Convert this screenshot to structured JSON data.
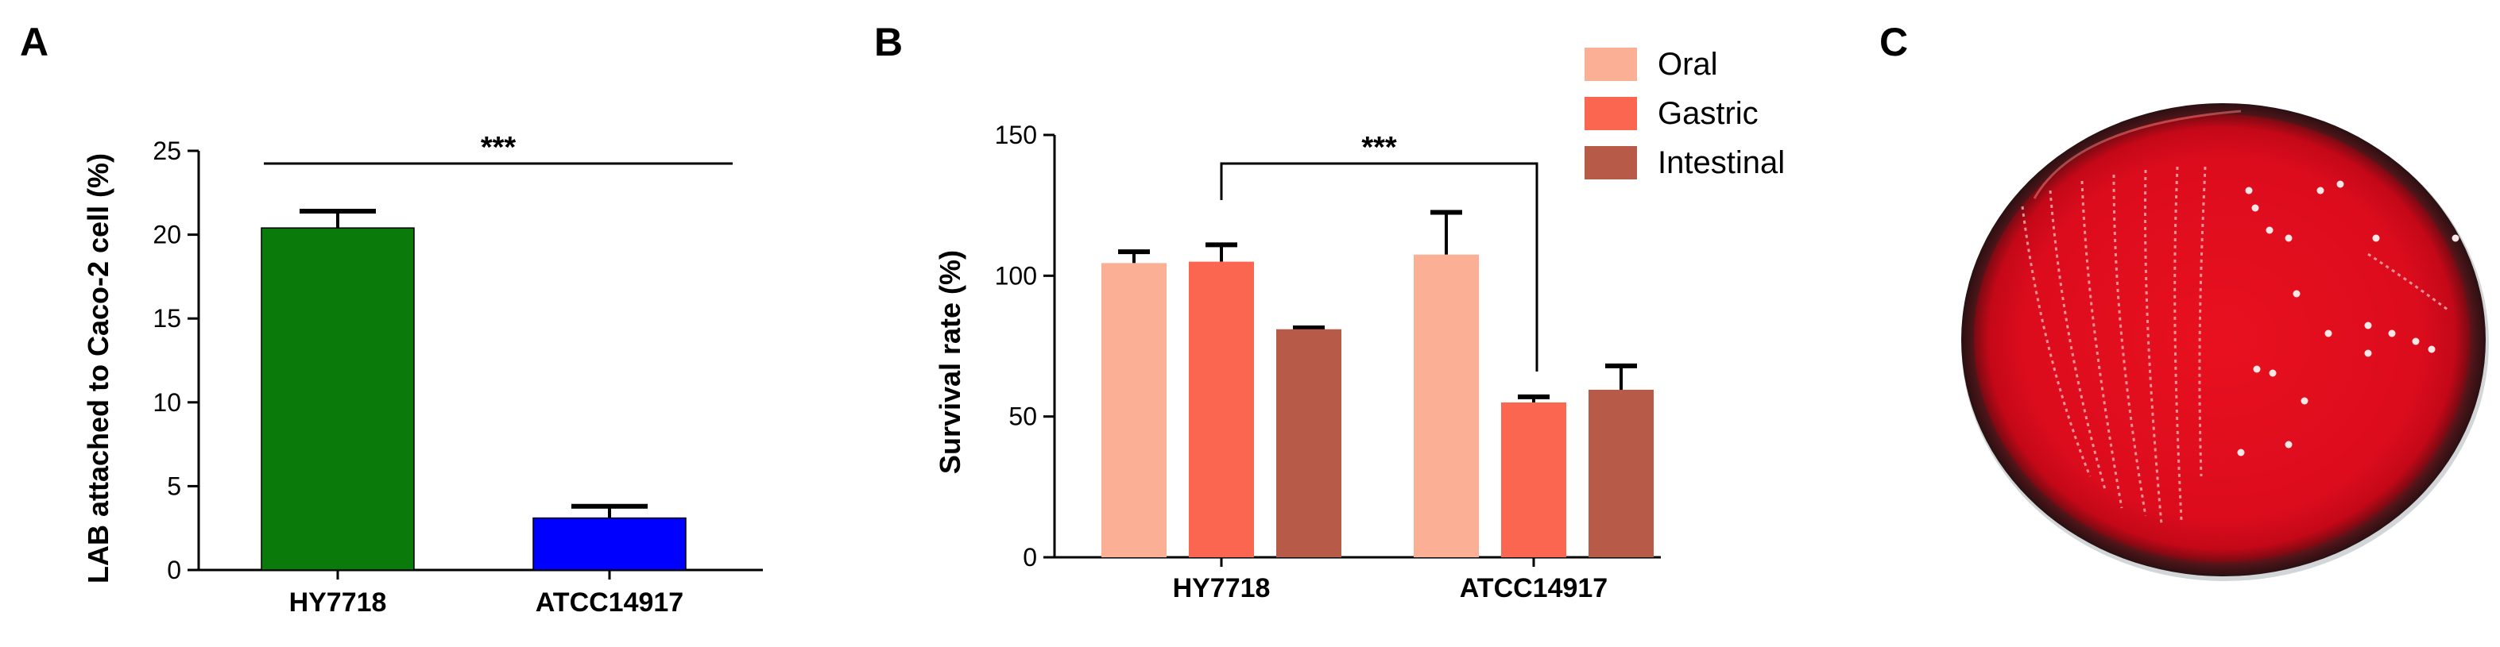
{
  "panels": {
    "a": {
      "letter": "A"
    },
    "b": {
      "letter": "B"
    },
    "c": {
      "letter": "C"
    }
  },
  "chart_data": [
    {
      "panel": "A",
      "type": "bar",
      "title": "",
      "xlabel": "",
      "ylabel": "LAB attached to Caco-2 cell (%)",
      "ylim": [
        0,
        25
      ],
      "yticks": [
        0,
        5,
        10,
        15,
        20,
        25
      ],
      "categories": [
        "HY7718",
        "ATCC14917"
      ],
      "values": [
        20.4,
        3.1
      ],
      "errors": [
        1.0,
        0.7
      ],
      "colors": [
        "#0a7a0a",
        "#0000ff"
      ],
      "annotation": {
        "text": "***",
        "between": [
          "HY7718",
          "ATCC14917"
        ]
      },
      "legend": "none",
      "grid": false
    },
    {
      "panel": "B",
      "type": "bar",
      "title": "",
      "xlabel": "",
      "ylabel": "Survival rate (%)",
      "ylim": [
        0,
        150
      ],
      "yticks": [
        0,
        50,
        100,
        150
      ],
      "categories": [
        "HY7718",
        "ATCC14917"
      ],
      "series": [
        {
          "name": "Oral",
          "color": "#fbb095",
          "values": [
            104.5,
            107.5
          ],
          "errors": [
            4.0,
            15.0
          ]
        },
        {
          "name": "Gastric",
          "color": "#fa6650",
          "values": [
            105.0,
            55.0
          ],
          "errors": [
            6.0,
            2.0
          ]
        },
        {
          "name": "Intestinal",
          "color": "#b75a48",
          "values": [
            81.0,
            59.5
          ],
          "errors": [
            0.5,
            8.5
          ]
        }
      ],
      "annotation": {
        "text": "***",
        "from": [
          "HY7718",
          "Gastric"
        ],
        "to": [
          "ATCC14917",
          "Gastric"
        ]
      },
      "legend": "top-right",
      "grid": false
    }
  ],
  "photo": {
    "description_icon": "blood-agar-plate-photo"
  }
}
